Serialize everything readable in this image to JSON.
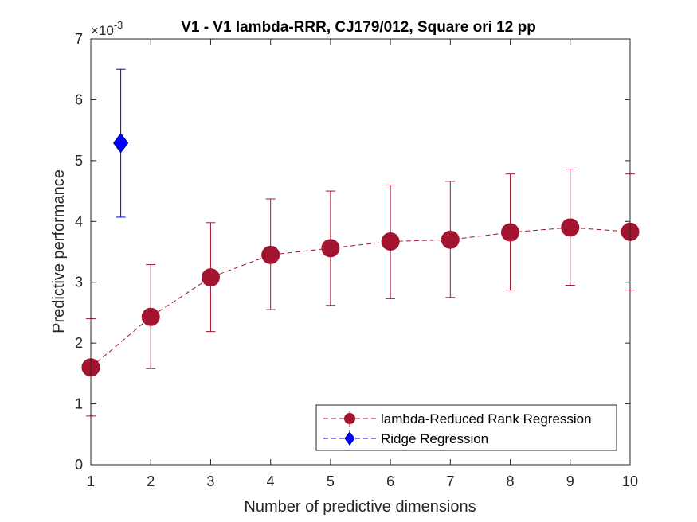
{
  "chart_data": {
    "type": "line",
    "title": "V1 - V1 lambda-RRR, CJ179/012, Square ori 12 pp",
    "xlabel": "Number of predictive dimensions",
    "ylabel": "Predictive performance",
    "y_exponent_base": "×10",
    "y_exponent_power": "-3",
    "xlim": [
      1,
      10
    ],
    "ylim": [
      0,
      7
    ],
    "xticks": [
      1,
      2,
      3,
      4,
      5,
      6,
      7,
      8,
      9,
      10
    ],
    "yticks": [
      0,
      1,
      2,
      3,
      4,
      5,
      6,
      7
    ],
    "grid": false,
    "legend_position": "bottom-right",
    "series": [
      {
        "name": "lambda-Reduced Rank Regression",
        "color": "#a2142f",
        "marker": "circle",
        "line_style": "dashed",
        "x": [
          1,
          2,
          3,
          4,
          5,
          6,
          7,
          8,
          9,
          10
        ],
        "y": [
          1.6,
          2.43,
          3.08,
          3.45,
          3.56,
          3.67,
          3.7,
          3.82,
          3.9,
          3.83
        ],
        "err_low": [
          0.8,
          1.58,
          2.19,
          2.55,
          2.62,
          2.73,
          2.75,
          2.87,
          2.95,
          2.87
        ],
        "err_high": [
          2.4,
          3.29,
          3.98,
          4.37,
          4.5,
          4.6,
          4.66,
          4.78,
          4.86,
          4.78
        ]
      },
      {
        "name": "Ridge Regression",
        "color": "#0000ff",
        "marker": "diamond",
        "line_style": "none",
        "x": [
          1.5
        ],
        "y": [
          5.29
        ],
        "err_low": [
          4.07
        ],
        "err_high": [
          6.5
        ]
      }
    ]
  }
}
